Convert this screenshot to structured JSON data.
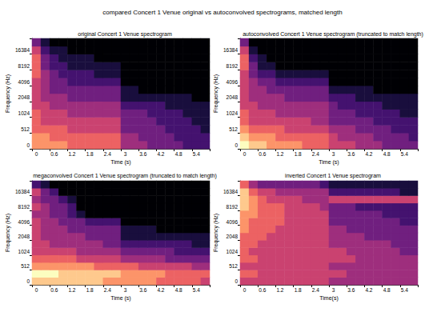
{
  "title": "compared Concert 1 Venue original vs autoconvolved spectrograms, matched length",
  "chart_data": [
    {
      "type": "heatmap",
      "title": "original Concert 1 Venue spectrogram",
      "x_label": "Time (s)",
      "y_label": "Frequency (Hz)",
      "x": [
        0,
        null,
        0.6,
        null,
        1.2,
        null,
        1.8,
        null,
        2.4,
        null,
        3,
        null,
        3.6,
        null,
        4.2,
        null,
        4.8,
        null,
        5.4,
        null
      ],
      "y": [
        0,
        null,
        512,
        null,
        1024,
        null,
        2048,
        null,
        4096,
        null,
        8192,
        null,
        16384,
        null
      ],
      "zlim": [
        0,
        9
      ],
      "cells": [
        [
          7,
          7,
          7,
          7,
          6,
          6,
          6,
          6,
          6,
          6,
          4,
          4,
          4,
          3,
          3,
          3,
          3,
          2,
          2,
          2
        ],
        [
          7,
          7,
          6,
          6,
          6,
          6,
          6,
          6,
          6,
          6,
          4,
          4,
          3,
          3,
          3,
          3,
          2,
          2,
          2,
          2
        ],
        [
          6,
          6,
          6,
          6,
          5,
          5,
          5,
          5,
          5,
          5,
          3,
          3,
          3,
          3,
          3,
          2,
          2,
          2,
          2,
          1
        ],
        [
          6,
          5,
          5,
          5,
          5,
          5,
          5,
          5,
          5,
          5,
          3,
          3,
          3,
          3,
          2,
          2,
          2,
          2,
          1,
          1
        ],
        [
          6,
          5,
          5,
          5,
          4,
          4,
          4,
          4,
          4,
          4,
          3,
          3,
          3,
          2,
          2,
          2,
          2,
          1,
          1,
          1
        ],
        [
          5,
          5,
          4,
          4,
          4,
          4,
          4,
          4,
          4,
          4,
          2,
          2,
          2,
          2,
          2,
          1,
          1,
          1,
          1,
          1
        ],
        [
          5,
          4,
          4,
          4,
          3,
          3,
          3,
          3,
          3,
          3,
          1,
          1,
          1,
          1,
          1,
          1,
          1,
          1,
          0,
          0
        ],
        [
          5,
          4,
          3,
          3,
          3,
          3,
          3,
          3,
          3,
          3,
          1,
          1,
          0,
          0,
          0,
          0,
          0,
          0,
          0,
          0
        ],
        [
          5,
          4,
          3,
          3,
          2,
          2,
          2,
          2,
          2,
          2,
          0,
          0,
          0,
          0,
          0,
          0,
          0,
          0,
          0,
          0
        ],
        [
          6,
          4,
          3,
          2,
          2,
          2,
          2,
          1,
          1,
          1,
          0,
          0,
          0,
          0,
          0,
          0,
          0,
          0,
          0,
          0
        ],
        [
          6,
          3,
          2,
          2,
          1,
          1,
          1,
          1,
          1,
          1,
          0,
          0,
          0,
          0,
          0,
          0,
          0,
          0,
          0,
          0
        ],
        [
          6,
          3,
          2,
          1,
          1,
          1,
          1,
          0,
          0,
          0,
          0,
          0,
          0,
          0,
          0,
          0,
          0,
          0,
          0,
          0
        ],
        [
          5,
          2,
          1,
          1,
          0,
          0,
          0,
          0,
          0,
          0,
          0,
          0,
          0,
          0,
          0,
          0,
          0,
          0,
          0,
          0
        ],
        [
          3,
          1,
          0,
          0,
          0,
          0,
          0,
          0,
          0,
          0,
          0,
          0,
          0,
          0,
          0,
          0,
          0,
          0,
          0,
          0
        ]
      ]
    },
    {
      "type": "heatmap",
      "title": "autoconvolved Concert 1 Venue spectrogram (truncated to match length)",
      "x_label": "Time (s)",
      "y_label": "Frequency (Hz)",
      "x": [
        0,
        null,
        0.6,
        null,
        1.2,
        null,
        1.8,
        null,
        2.4,
        null,
        3,
        null,
        3.6,
        null,
        4.2,
        null,
        4.8,
        null,
        5.4,
        null
      ],
      "y": [
        0,
        null,
        512,
        null,
        1024,
        null,
        2048,
        null,
        4096,
        null,
        8192,
        null,
        16384,
        null
      ],
      "zlim": [
        0,
        9
      ],
      "cells": [
        [
          9,
          8,
          8,
          7,
          7,
          7,
          7,
          6,
          6,
          6,
          5,
          5,
          5,
          4,
          4,
          4,
          3,
          3,
          3,
          3
        ],
        [
          8,
          7,
          7,
          7,
          6,
          6,
          6,
          6,
          6,
          6,
          5,
          4,
          4,
          4,
          4,
          3,
          3,
          3,
          3,
          2
        ],
        [
          7,
          6,
          6,
          6,
          6,
          5,
          5,
          5,
          5,
          5,
          4,
          4,
          4,
          3,
          3,
          3,
          3,
          2,
          2,
          2
        ],
        [
          6,
          5,
          5,
          5,
          5,
          5,
          5,
          5,
          4,
          4,
          3,
          3,
          3,
          3,
          3,
          2,
          2,
          2,
          2,
          2
        ],
        [
          6,
          5,
          5,
          5,
          4,
          4,
          4,
          4,
          4,
          4,
          3,
          3,
          3,
          2,
          2,
          2,
          2,
          2,
          1,
          1
        ],
        [
          5,
          5,
          4,
          4,
          4,
          4,
          4,
          4,
          4,
          4,
          3,
          2,
          2,
          2,
          2,
          2,
          1,
          1,
          1,
          1
        ],
        [
          5,
          4,
          4,
          4,
          4,
          3,
          3,
          3,
          3,
          3,
          2,
          2,
          2,
          1,
          1,
          1,
          1,
          1,
          1,
          1
        ],
        [
          5,
          4,
          4,
          3,
          3,
          3,
          3,
          3,
          3,
          3,
          1,
          1,
          1,
          1,
          1,
          0,
          0,
          0,
          0,
          0
        ],
        [
          5,
          4,
          3,
          3,
          2,
          2,
          2,
          2,
          2,
          2,
          0,
          0,
          0,
          0,
          0,
          0,
          0,
          0,
          0,
          0
        ],
        [
          5,
          3,
          2,
          2,
          1,
          1,
          1,
          1,
          1,
          1,
          0,
          0,
          0,
          0,
          0,
          0,
          0,
          0,
          0,
          0
        ],
        [
          6,
          3,
          1,
          1,
          0,
          0,
          0,
          0,
          0,
          0,
          0,
          0,
          0,
          0,
          0,
          0,
          0,
          0,
          0,
          0
        ],
        [
          6,
          2,
          1,
          0,
          0,
          0,
          0,
          0,
          0,
          0,
          0,
          0,
          0,
          0,
          0,
          0,
          0,
          0,
          0,
          0
        ],
        [
          5,
          1,
          0,
          0,
          0,
          0,
          0,
          0,
          0,
          0,
          0,
          0,
          0,
          0,
          0,
          0,
          0,
          0,
          0,
          0
        ],
        [
          3,
          0,
          0,
          0,
          0,
          0,
          0,
          0,
          0,
          0,
          0,
          0,
          0,
          0,
          0,
          0,
          0,
          0,
          0,
          0
        ]
      ]
    },
    {
      "type": "heatmap",
      "title": "megaconvolved Concert 1 Venue spectrogram (truncated to match length)",
      "x_label": "Time (s)",
      "y_label": "Frequency (Hz)",
      "x": [
        0,
        null,
        0.6,
        null,
        1.2,
        null,
        1.8,
        null,
        2.4,
        null,
        3,
        null,
        3.6,
        null,
        4.2,
        null,
        4.8,
        null,
        5.4,
        null
      ],
      "y": [
        0,
        null,
        512,
        null,
        1024,
        null,
        2048,
        null,
        4096,
        null,
        8192,
        null,
        16384,
        null
      ],
      "zlim": [
        0,
        9
      ],
      "cells": [
        [
          8,
          8,
          8,
          8,
          8,
          8,
          8,
          8,
          7,
          7,
          7,
          7,
          7,
          7,
          6,
          6,
          6,
          6,
          6,
          5
        ],
        [
          9,
          9,
          9,
          8,
          8,
          8,
          8,
          8,
          8,
          8,
          7,
          7,
          7,
          7,
          7,
          6,
          6,
          6,
          6,
          6
        ],
        [
          7,
          7,
          7,
          7,
          7,
          7,
          7,
          6,
          6,
          6,
          6,
          6,
          5,
          5,
          5,
          5,
          5,
          5,
          4,
          4
        ],
        [
          6,
          6,
          6,
          6,
          6,
          5,
          5,
          5,
          5,
          5,
          4,
          4,
          4,
          4,
          4,
          3,
          3,
          3,
          3,
          3
        ],
        [
          5,
          5,
          5,
          5,
          5,
          4,
          4,
          4,
          4,
          4,
          3,
          3,
          3,
          3,
          3,
          3,
          2,
          2,
          2,
          2
        ],
        [
          5,
          5,
          4,
          4,
          4,
          4,
          4,
          4,
          3,
          3,
          2,
          2,
          2,
          2,
          2,
          2,
          2,
          2,
          1,
          1
        ],
        [
          5,
          4,
          4,
          4,
          4,
          4,
          3,
          3,
          3,
          3,
          1,
          1,
          1,
          1,
          1,
          1,
          1,
          1,
          1,
          1
        ],
        [
          5,
          4,
          4,
          4,
          3,
          3,
          3,
          3,
          3,
          3,
          1,
          1,
          1,
          1,
          0,
          0,
          0,
          0,
          0,
          0
        ],
        [
          5,
          4,
          4,
          3,
          3,
          3,
          2,
          2,
          2,
          2,
          0,
          0,
          0,
          0,
          0,
          0,
          0,
          0,
          0,
          0
        ],
        [
          4,
          4,
          3,
          3,
          2,
          1,
          0,
          0,
          0,
          0,
          0,
          0,
          0,
          0,
          0,
          0,
          0,
          0,
          0,
          0
        ],
        [
          5,
          4,
          3,
          3,
          2,
          0,
          0,
          0,
          0,
          0,
          0,
          0,
          0,
          0,
          0,
          0,
          0,
          0,
          0,
          0
        ],
        [
          4,
          3,
          3,
          2,
          1,
          0,
          0,
          0,
          0,
          0,
          0,
          0,
          0,
          0,
          0,
          0,
          0,
          0,
          0,
          0
        ],
        [
          5,
          3,
          2,
          0,
          0,
          0,
          0,
          0,
          0,
          0,
          0,
          0,
          0,
          0,
          0,
          0,
          0,
          0,
          0,
          0
        ],
        [
          2,
          1,
          0,
          0,
          0,
          0,
          0,
          0,
          0,
          0,
          0,
          0,
          0,
          0,
          0,
          0,
          0,
          0,
          0,
          0
        ]
      ]
    },
    {
      "type": "heatmap",
      "title": "inverted Concert 1 Venue spectrogram",
      "x_label": "Time(s)",
      "y_label": "Frequency (Hz)",
      "x": [
        0,
        null,
        0.6,
        null,
        1.2,
        null,
        1.8,
        null,
        2.4,
        null,
        3,
        null,
        3.6,
        null,
        4.2,
        null,
        4.8,
        null,
        5.4,
        null
      ],
      "y": [
        0,
        null,
        512,
        null,
        1024,
        null,
        2048,
        null,
        4096,
        null,
        8192,
        null,
        16384,
        null
      ],
      "zlim": [
        0,
        9
      ],
      "cells": [
        [
          5,
          5,
          5,
          5,
          5,
          5,
          5,
          5,
          5,
          5,
          4,
          4,
          4,
          4,
          4,
          4,
          4,
          4,
          4,
          4
        ],
        [
          6,
          6,
          5,
          5,
          5,
          5,
          5,
          5,
          5,
          5,
          5,
          5,
          4,
          4,
          4,
          4,
          4,
          4,
          4,
          4
        ],
        [
          5,
          5,
          5,
          5,
          5,
          5,
          5,
          5,
          5,
          5,
          4,
          4,
          4,
          4,
          4,
          4,
          4,
          4,
          4,
          4
        ],
        [
          6,
          6,
          5,
          5,
          5,
          5,
          5,
          5,
          5,
          5,
          5,
          5,
          5,
          4,
          4,
          4,
          4,
          4,
          4,
          4
        ],
        [
          6,
          5,
          5,
          5,
          5,
          5,
          5,
          5,
          5,
          5,
          5,
          5,
          4,
          4,
          4,
          4,
          4,
          4,
          3,
          3
        ],
        [
          6,
          6,
          5,
          5,
          5,
          5,
          5,
          5,
          5,
          5,
          4,
          4,
          4,
          4,
          4,
          4,
          4,
          3,
          3,
          3
        ],
        [
          6,
          6,
          6,
          5,
          5,
          5,
          5,
          5,
          5,
          5,
          4,
          4,
          4,
          4,
          3,
          3,
          3,
          3,
          3,
          3
        ],
        [
          7,
          6,
          6,
          6,
          5,
          5,
          5,
          5,
          5,
          5,
          4,
          4,
          3,
          3,
          3,
          3,
          3,
          3,
          3,
          3
        ],
        [
          7,
          6,
          6,
          6,
          6,
          5,
          5,
          5,
          5,
          5,
          3,
          3,
          3,
          3,
          3,
          3,
          3,
          3,
          2,
          2
        ],
        [
          7,
          7,
          6,
          6,
          6,
          5,
          5,
          5,
          5,
          5,
          3,
          3,
          3,
          3,
          3,
          3,
          2,
          2,
          2,
          2
        ],
        [
          8,
          7,
          6,
          6,
          6,
          5,
          5,
          5,
          5,
          4,
          3,
          3,
          3,
          2,
          2,
          2,
          2,
          2,
          2,
          2
        ],
        [
          8,
          7,
          6,
          5,
          5,
          5,
          5,
          4,
          4,
          4,
          5,
          5,
          5,
          5,
          5,
          5,
          5,
          5,
          5,
          5
        ],
        [
          8,
          6,
          5,
          5,
          4,
          4,
          4,
          4,
          4,
          4,
          2,
          2,
          2,
          2,
          2,
          2,
          2,
          2,
          1,
          1
        ],
        [
          6,
          4,
          3,
          3,
          3,
          3,
          3,
          3,
          3,
          2,
          1,
          1,
          1,
          1,
          1,
          1,
          1,
          1,
          1,
          1
        ]
      ]
    }
  ]
}
